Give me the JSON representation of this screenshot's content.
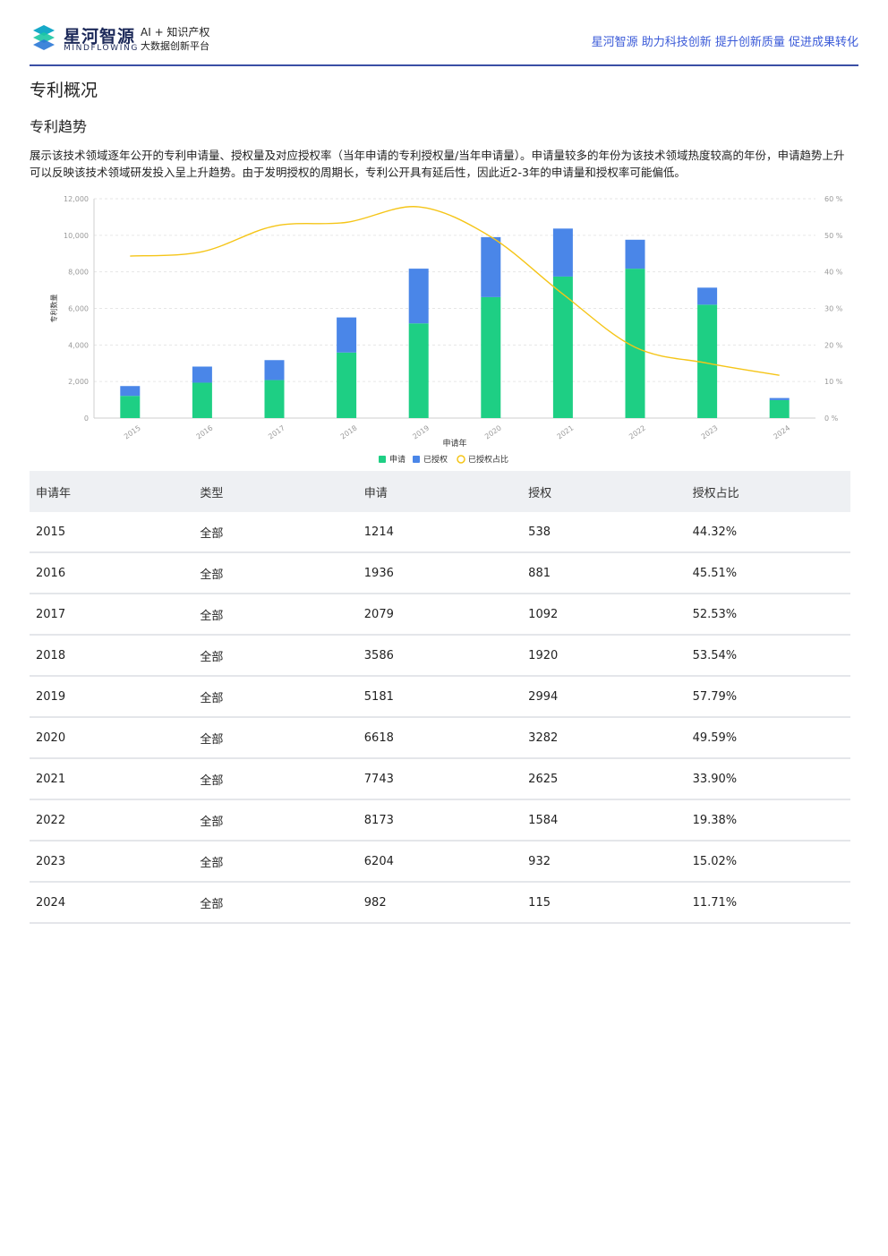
{
  "header": {
    "brand_cn": "星河智源",
    "brand_en": "MINDFLOWING",
    "sub1": "AI + 知识产权",
    "sub2": "大数据创新平台",
    "slogan": "星河智源 助力科技创新 提升创新质量 促进成果转化"
  },
  "section": {
    "title": "专利概况",
    "subtitle": "专利趋势",
    "description": "展示该技术领域逐年公开的专利申请量、授权量及对应授权率（当年申请的专利授权量/当年申请量）。申请量较多的年份为该技术领域热度较高的年份，申请趋势上升可以反映该技术领域研发投入呈上升趋势。由于发明授权的周期长，专利公开具有延后性，因此近2-3年的申请量和授权率可能偏低。"
  },
  "chart_data": {
    "type": "bar",
    "stacked": true,
    "categories": [
      "2015",
      "2016",
      "2017",
      "2018",
      "2019",
      "2020",
      "2021",
      "2022",
      "2023",
      "2024"
    ],
    "series": [
      {
        "name": "申请",
        "type": "bar",
        "color": "#1ecf84",
        "values": [
          1214,
          1936,
          2079,
          3586,
          5181,
          6618,
          7743,
          8173,
          6204,
          982
        ]
      },
      {
        "name": "已授权",
        "type": "bar",
        "color": "#4a86e8",
        "values": [
          538,
          881,
          1092,
          1920,
          2994,
          3282,
          2625,
          1584,
          932,
          115
        ]
      },
      {
        "name": "已授权占比",
        "type": "line",
        "axis": "right",
        "color": "#f5c518",
        "values": [
          44.32,
          45.51,
          52.53,
          53.54,
          57.79,
          49.59,
          33.9,
          19.38,
          15.02,
          11.71
        ]
      }
    ],
    "xlabel": "申请年",
    "ylabel": "专利数量",
    "ylim": [
      0,
      12000
    ],
    "yticks": [
      "0",
      "2,000",
      "4,000",
      "6,000",
      "8,000",
      "10,000",
      "12,000"
    ],
    "y2lim": [
      0,
      60
    ],
    "y2ticks": [
      "0 %",
      "10 %",
      "20 %",
      "30 %",
      "40 %",
      "50 %",
      "60 %"
    ],
    "grid": true,
    "legend": "bottom-center"
  },
  "table": {
    "headers": [
      "申请年",
      "类型",
      "申请",
      "授权",
      "授权占比"
    ],
    "rows": [
      [
        "2015",
        "全部",
        "1214",
        "538",
        "44.32%"
      ],
      [
        "2016",
        "全部",
        "1936",
        "881",
        "45.51%"
      ],
      [
        "2017",
        "全部",
        "2079",
        "1092",
        "52.53%"
      ],
      [
        "2018",
        "全部",
        "3586",
        "1920",
        "53.54%"
      ],
      [
        "2019",
        "全部",
        "5181",
        "2994",
        "57.79%"
      ],
      [
        "2020",
        "全部",
        "6618",
        "3282",
        "49.59%"
      ],
      [
        "2021",
        "全部",
        "7743",
        "2625",
        "33.90%"
      ],
      [
        "2022",
        "全部",
        "8173",
        "1584",
        "19.38%"
      ],
      [
        "2023",
        "全部",
        "6204",
        "932",
        "15.02%"
      ],
      [
        "2024",
        "全部",
        "982",
        "115",
        "11.71%"
      ]
    ]
  }
}
